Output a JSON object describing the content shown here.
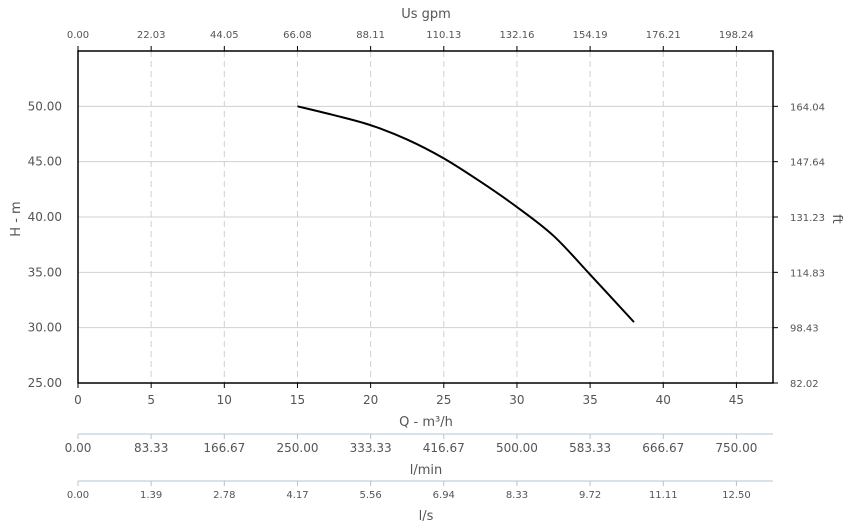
{
  "chart_data": {
    "type": "line",
    "xlabel": "Q - m³/h",
    "ylabel": "H - m",
    "xlim": [
      0,
      47.5
    ],
    "ylim": [
      25,
      55
    ],
    "grid": true,
    "x_ticks": [
      "0",
      "5",
      "10",
      "15",
      "20",
      "25",
      "30",
      "35",
      "40",
      "45"
    ],
    "y_ticks": [
      "25.00",
      "30.00",
      "35.00",
      "40.00",
      "45.00",
      "50.00"
    ],
    "top_axis": {
      "label": "Us gpm",
      "ticks": [
        "0.00",
        "22.03",
        "44.05",
        "66.08",
        "88.11",
        "110.13",
        "132.16",
        "154.19",
        "176.21",
        "198.24"
      ]
    },
    "right_axis": {
      "label": "ft",
      "ticks": [
        "82.02",
        "98.43",
        "114.83",
        "131.23",
        "147.64",
        "164.04"
      ]
    },
    "lmin_axis": {
      "label": "l/min",
      "ticks": [
        "0.00",
        "83.33",
        "166.67",
        "250.00",
        "333.33",
        "416.67",
        "500.00",
        "583.33",
        "666.67",
        "750.00"
      ]
    },
    "ls_axis": {
      "label": "l/s",
      "ticks": [
        "0.00",
        "1.39",
        "2.78",
        "4.17",
        "5.56",
        "6.94",
        "8.33",
        "9.72",
        "11.11",
        "12.50"
      ]
    },
    "series": [
      {
        "x": [
          15,
          17.5,
          20,
          22.5,
          25,
          27.5,
          30,
          32.5,
          35,
          38
        ],
        "y": [
          50.0,
          49.2,
          48.3,
          47.0,
          45.3,
          43.2,
          40.9,
          38.3,
          34.8,
          30.5
        ]
      }
    ]
  },
  "colors": {
    "curve": "#000000",
    "frame": "#000000",
    "grid": "#d0d0d0",
    "text": "#555555",
    "secondary_axis": "#b0c4d6"
  }
}
